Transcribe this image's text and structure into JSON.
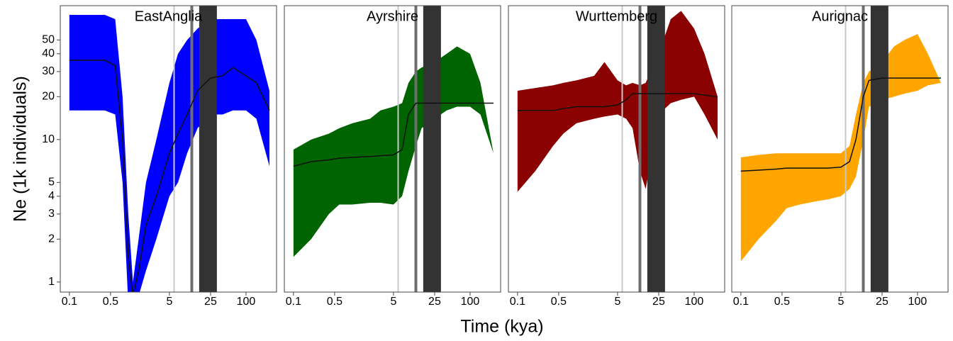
{
  "xlabel": "Time (kya)",
  "ylabel": "Ne (1k individuals)",
  "chart_data": [
    {
      "type": "area",
      "title": "EastAnglia",
      "color": "#0000ff",
      "log_x": true,
      "log_y": true,
      "xlim": [
        0.07,
        330
      ],
      "ylim": [
        0.85,
        87
      ],
      "xticks": [
        0.1,
        0.5,
        5,
        25,
        100
      ],
      "yticks": [
        1,
        2,
        3,
        4,
        5,
        10,
        20,
        30,
        40,
        50
      ],
      "x": [
        0.1,
        0.2,
        0.4,
        0.6,
        0.8,
        1,
        1.2,
        1.5,
        2,
        3,
        5,
        7,
        10,
        15,
        25,
        40,
        60,
        100,
        150,
        250
      ],
      "values": [
        36,
        36,
        36,
        33,
        10,
        1.5,
        0.8,
        1.2,
        2.5,
        4,
        8,
        11,
        15,
        22,
        27,
        28,
        32,
        28,
        25,
        16
      ],
      "upper": [
        75,
        75,
        75,
        70,
        20,
        3,
        1,
        2,
        5,
        10,
        25,
        40,
        50,
        60,
        70,
        70,
        70,
        70,
        50,
        22
      ],
      "lower": [
        16,
        16,
        16,
        15,
        5,
        0.7,
        0.6,
        0.8,
        1.2,
        2,
        4,
        5,
        8,
        12,
        15,
        15,
        16,
        16,
        14,
        6.5
      ],
      "lines": [
        {
          "value": 6,
          "color": "#c8c8c8"
        },
        {
          "value": 12,
          "color": "#6e6e6e"
        }
      ],
      "span": {
        "range": [
          16,
          32
        ],
        "color": "#333333"
      }
    },
    {
      "type": "area",
      "title": "Ayrshire",
      "color": "#006400",
      "log_x": true,
      "log_y": true,
      "xlim": [
        0.07,
        330
      ],
      "ylim": [
        0.85,
        87
      ],
      "xticks": [
        0.1,
        0.5,
        5,
        25,
        100
      ],
      "x": [
        0.1,
        0.2,
        0.4,
        0.6,
        1,
        2,
        3,
        5,
        7,
        9,
        12,
        15,
        25,
        40,
        60,
        100,
        150,
        250
      ],
      "values": [
        6.5,
        7,
        7.2,
        7.4,
        7.5,
        7.6,
        7.7,
        7.8,
        8.5,
        15,
        18,
        18,
        18,
        18,
        18,
        18,
        18,
        18
      ],
      "upper": [
        8.5,
        10,
        11,
        12,
        13,
        14,
        16,
        17,
        18,
        25,
        30,
        32,
        35,
        40,
        45,
        40,
        25,
        8
      ],
      "lower": [
        1.5,
        2,
        3,
        3.5,
        3.5,
        3.6,
        3.6,
        3.5,
        4,
        6,
        9,
        12,
        14,
        16,
        17,
        17,
        15,
        8
      ],
      "lines": [
        {
          "value": 6,
          "color": "#c8c8c8"
        },
        {
          "value": 12,
          "color": "#6e6e6e"
        }
      ],
      "span": {
        "range": [
          16,
          32
        ],
        "color": "#333333"
      }
    },
    {
      "type": "area",
      "title": "Wurttemberg",
      "color": "#8b0000",
      "log_x": true,
      "log_y": true,
      "xlim": [
        0.07,
        330
      ],
      "ylim": [
        0.85,
        87
      ],
      "xticks": [
        0.1,
        0.5,
        5,
        25,
        100
      ],
      "x": [
        0.1,
        0.2,
        0.4,
        0.6,
        1,
        2,
        3,
        5,
        7,
        9,
        12,
        15,
        25,
        40,
        60,
        100,
        150,
        250
      ],
      "values": [
        16,
        16,
        16,
        16.5,
        17,
        17,
        17,
        17.5,
        19,
        21,
        21,
        21,
        21,
        21,
        21,
        21,
        20.5,
        20
      ],
      "upper": [
        22,
        23,
        24,
        25,
        26,
        28,
        35,
        26,
        24,
        25,
        24,
        25,
        40,
        70,
        80,
        60,
        40,
        20
      ],
      "lower": [
        4.3,
        6,
        9,
        11,
        13,
        14,
        14.5,
        15,
        14,
        12,
        6,
        4.5,
        15,
        18,
        19,
        20,
        15,
        10
      ],
      "lines": [
        {
          "value": 6,
          "color": "#c8c8c8"
        },
        {
          "value": 12,
          "color": "#6e6e6e"
        }
      ],
      "span": {
        "range": [
          16,
          32
        ],
        "color": "#333333"
      }
    },
    {
      "type": "area",
      "title": "Aurignac",
      "color": "#ffa500",
      "log_x": true,
      "log_y": true,
      "xlim": [
        0.07,
        330
      ],
      "ylim": [
        0.85,
        87
      ],
      "xticks": [
        0.1,
        0.5,
        5,
        25,
        100
      ],
      "x": [
        0.1,
        0.2,
        0.4,
        0.6,
        1,
        2,
        3,
        5,
        7,
        9,
        12,
        15,
        25,
        40,
        60,
        100,
        150,
        250
      ],
      "values": [
        6,
        6.1,
        6.2,
        6.3,
        6.3,
        6.3,
        6.3,
        6.4,
        7,
        10,
        20,
        26,
        27,
        27,
        27,
        27,
        27,
        27
      ],
      "upper": [
        7.5,
        7.8,
        8,
        8,
        8,
        8,
        8,
        8,
        9,
        15,
        25,
        30,
        35,
        45,
        50,
        55,
        40,
        25
      ],
      "lower": [
        1.4,
        2,
        2.7,
        3.3,
        3.5,
        3.7,
        3.8,
        4,
        4.5,
        5.5,
        10,
        17,
        19,
        20,
        21,
        22,
        24,
        25
      ],
      "lines": [
        {
          "value": 6,
          "color": "#c8c8c8"
        },
        {
          "value": 12,
          "color": "#6e6e6e"
        }
      ],
      "span": {
        "range": [
          16,
          32
        ],
        "color": "#333333"
      }
    }
  ]
}
